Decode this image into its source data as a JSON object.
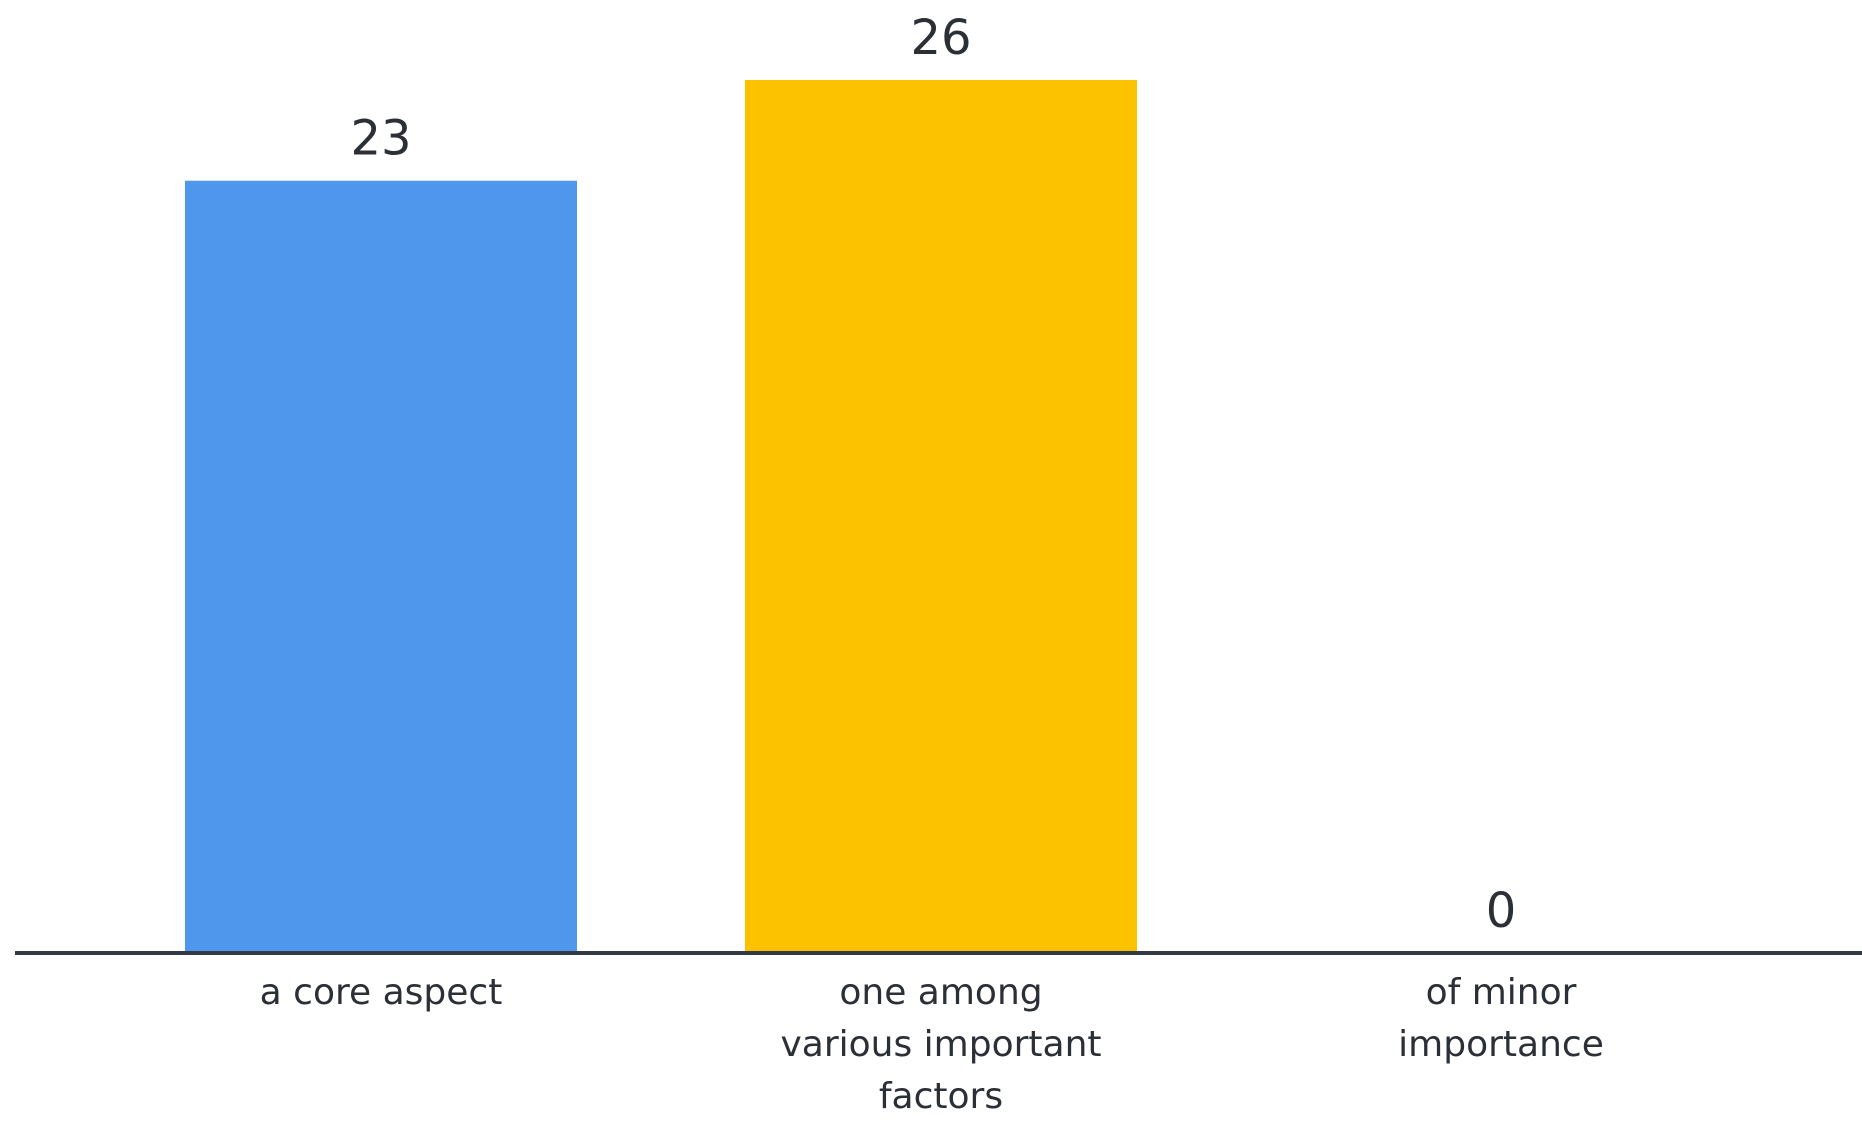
{
  "chart_data": {
    "type": "bar",
    "categories": [
      [
        "a core aspect"
      ],
      [
        "one among",
        "various important",
        "factors"
      ],
      [
        "of minor",
        "importance"
      ]
    ],
    "values": [
      23,
      26,
      0
    ],
    "colors": [
      "#4e97ed",
      "#fcc200",
      "#c8c8c8"
    ],
    "axis_color": "#333a45",
    "text_color": "#2b2f36",
    "ylim": [
      0,
      26
    ],
    "grid": false,
    "legend": "none"
  }
}
